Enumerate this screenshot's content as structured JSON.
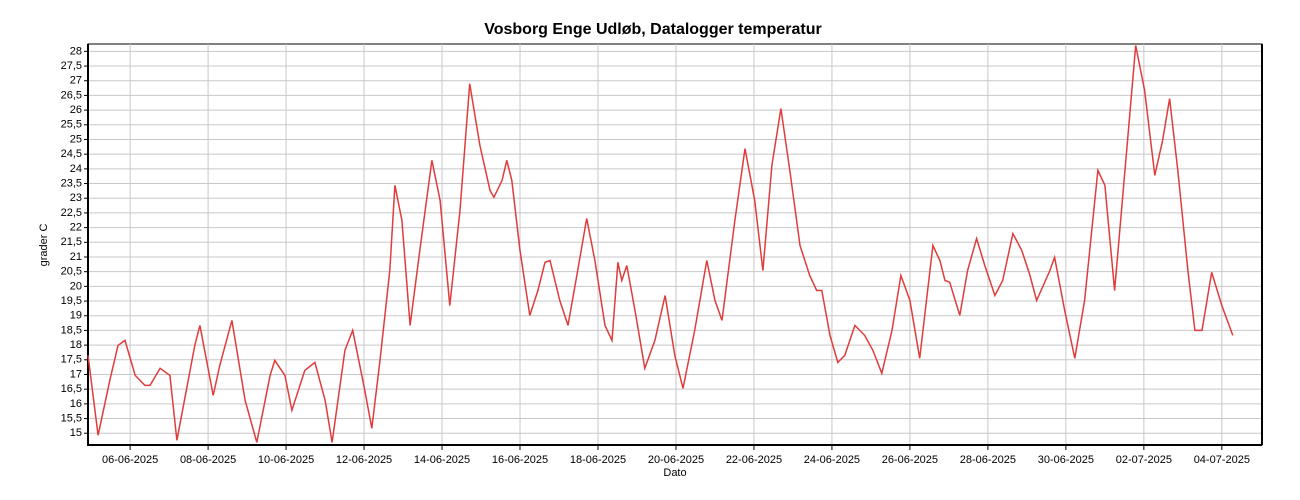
{
  "chart_data": {
    "type": "line",
    "title": "Vosborg Enge Udløb, Datalogger temperatur",
    "xlabel": "Dato",
    "ylabel": "grader C",
    "x": [
      4.92,
      5.18,
      5.48,
      5.69,
      5.87,
      6.13,
      6.38,
      6.51,
      6.77,
      7.02,
      7.13,
      7.2,
      7.66,
      7.79,
      8.13,
      8.3,
      8.61,
      8.95,
      9.25,
      9.59,
      9.71,
      9.97,
      10.15,
      10.48,
      10.74,
      11.0,
      11.18,
      11.51,
      11.71,
      12.02,
      12.2,
      12.41,
      12.66,
      12.79,
      12.97,
      13.18,
      13.43,
      13.74,
      13.95,
      14.2,
      14.46,
      14.71,
      14.97,
      15.23,
      15.33,
      15.54,
      15.66,
      15.79,
      16.0,
      16.25,
      16.46,
      16.64,
      16.77,
      17.02,
      17.23,
      17.48,
      17.71,
      17.92,
      18.18,
      18.36,
      18.51,
      18.61,
      18.74,
      18.95,
      19.2,
      19.46,
      19.72,
      19.97,
      20.18,
      20.48,
      20.79,
      21.0,
      21.18,
      21.51,
      21.77,
      22.02,
      22.23,
      22.46,
      22.69,
      22.92,
      23.18,
      23.43,
      23.61,
      23.74,
      23.95,
      24.15,
      24.33,
      24.59,
      24.84,
      25.05,
      25.28,
      25.54,
      25.77,
      26.0,
      26.25,
      26.59,
      26.77,
      26.9,
      27.02,
      27.28,
      27.48,
      27.71,
      27.92,
      28.18,
      28.38,
      28.64,
      28.87,
      29.08,
      29.25,
      29.59,
      29.71,
      29.97,
      30.23,
      30.48,
      30.82,
      31.0,
      31.25,
      31.56,
      31.79,
      32.02,
      32.28,
      32.48,
      32.66,
      32.87,
      33.13,
      33.31,
      33.49,
      33.74,
      34.0,
      34.28
    ],
    "series": [
      {
        "name": "Temperatur",
        "color": "#e03c3c",
        "values": [
          17.65,
          14.93,
          16.8,
          17.99,
          18.16,
          16.97,
          16.63,
          16.63,
          17.21,
          16.97,
          15.61,
          14.76,
          17.99,
          18.67,
          16.29,
          17.31,
          18.84,
          16.12,
          14.69,
          16.97,
          17.48,
          16.97,
          15.78,
          17.14,
          17.41,
          16.12,
          14.69,
          17.82,
          18.5,
          16.46,
          15.17,
          17.48,
          20.54,
          23.44,
          22.25,
          18.67,
          21.22,
          24.29,
          22.93,
          19.35,
          22.59,
          26.9,
          24.8,
          23.27,
          23.03,
          23.61,
          24.29,
          23.61,
          21.22,
          19.01,
          19.86,
          20.82,
          20.88,
          19.52,
          18.67,
          20.54,
          22.31,
          20.88,
          18.67,
          18.16,
          20.82,
          20.2,
          20.71,
          19.18,
          17.21,
          18.16,
          19.69,
          17.65,
          16.53,
          18.5,
          20.88,
          19.52,
          18.84,
          22.25,
          24.69,
          22.93,
          20.54,
          24.12,
          26.05,
          23.95,
          21.39,
          20.37,
          19.86,
          19.86,
          18.33,
          17.41,
          17.65,
          18.67,
          18.33,
          17.82,
          17.04,
          18.5,
          20.37,
          19.52,
          17.55,
          21.39,
          20.88,
          20.2,
          20.14,
          19.01,
          20.54,
          21.63,
          20.71,
          19.69,
          20.2,
          21.8,
          21.22,
          20.37,
          19.52,
          20.54,
          20.99,
          19.18,
          17.55,
          19.52,
          23.95,
          23.44,
          19.86,
          24.63,
          28.2,
          26.67,
          23.78,
          24.97,
          26.39,
          23.95,
          20.54,
          18.5,
          18.5,
          20.48,
          19.35,
          18.33
        ]
      }
    ],
    "xlim": [
      4.92,
      35.03
    ],
    "xticks": [
      {
        "value": 6,
        "label": "06-06-2025"
      },
      {
        "value": 8,
        "label": "08-06-2025"
      },
      {
        "value": 10,
        "label": "10-06-2025"
      },
      {
        "value": 12,
        "label": "12-06-2025"
      },
      {
        "value": 14,
        "label": "14-06-2025"
      },
      {
        "value": 16,
        "label": "16-06-2025"
      },
      {
        "value": 18,
        "label": "18-06-2025"
      },
      {
        "value": 20,
        "label": "20-06-2025"
      },
      {
        "value": 22,
        "label": "22-06-2025"
      },
      {
        "value": 24,
        "label": "24-06-2025"
      },
      {
        "value": 26,
        "label": "26-06-2025"
      },
      {
        "value": 28,
        "label": "28-06-2025"
      },
      {
        "value": 30,
        "label": "30-06-2025"
      },
      {
        "value": 32,
        "label": "02-07-2025"
      },
      {
        "value": 34,
        "label": "04-07-2025"
      }
    ],
    "ylim": [
      14.6,
      28.25
    ],
    "yticks": [
      15,
      {
        "value": 15.5,
        "label": "15,5"
      },
      16,
      {
        "value": 16.5,
        "label": "16,5"
      },
      17,
      {
        "value": 17.5,
        "label": "17,5"
      },
      18,
      {
        "value": 18.5,
        "label": "18,5"
      },
      19,
      {
        "value": 19.5,
        "label": "19,5"
      },
      20,
      {
        "value": 20.5,
        "label": "20,5"
      },
      21,
      {
        "value": 21.5,
        "label": "21,5"
      },
      22,
      {
        "value": 22.5,
        "label": "22,5"
      },
      23,
      {
        "value": 23.5,
        "label": "23,5"
      },
      24,
      {
        "value": 24.5,
        "label": "24,5"
      },
      25,
      {
        "value": 25.5,
        "label": "25,5"
      },
      26,
      {
        "value": 26.5,
        "label": "26,5"
      },
      27,
      {
        "value": 27.5,
        "label": "27,5"
      },
      28
    ],
    "grid": true
  }
}
